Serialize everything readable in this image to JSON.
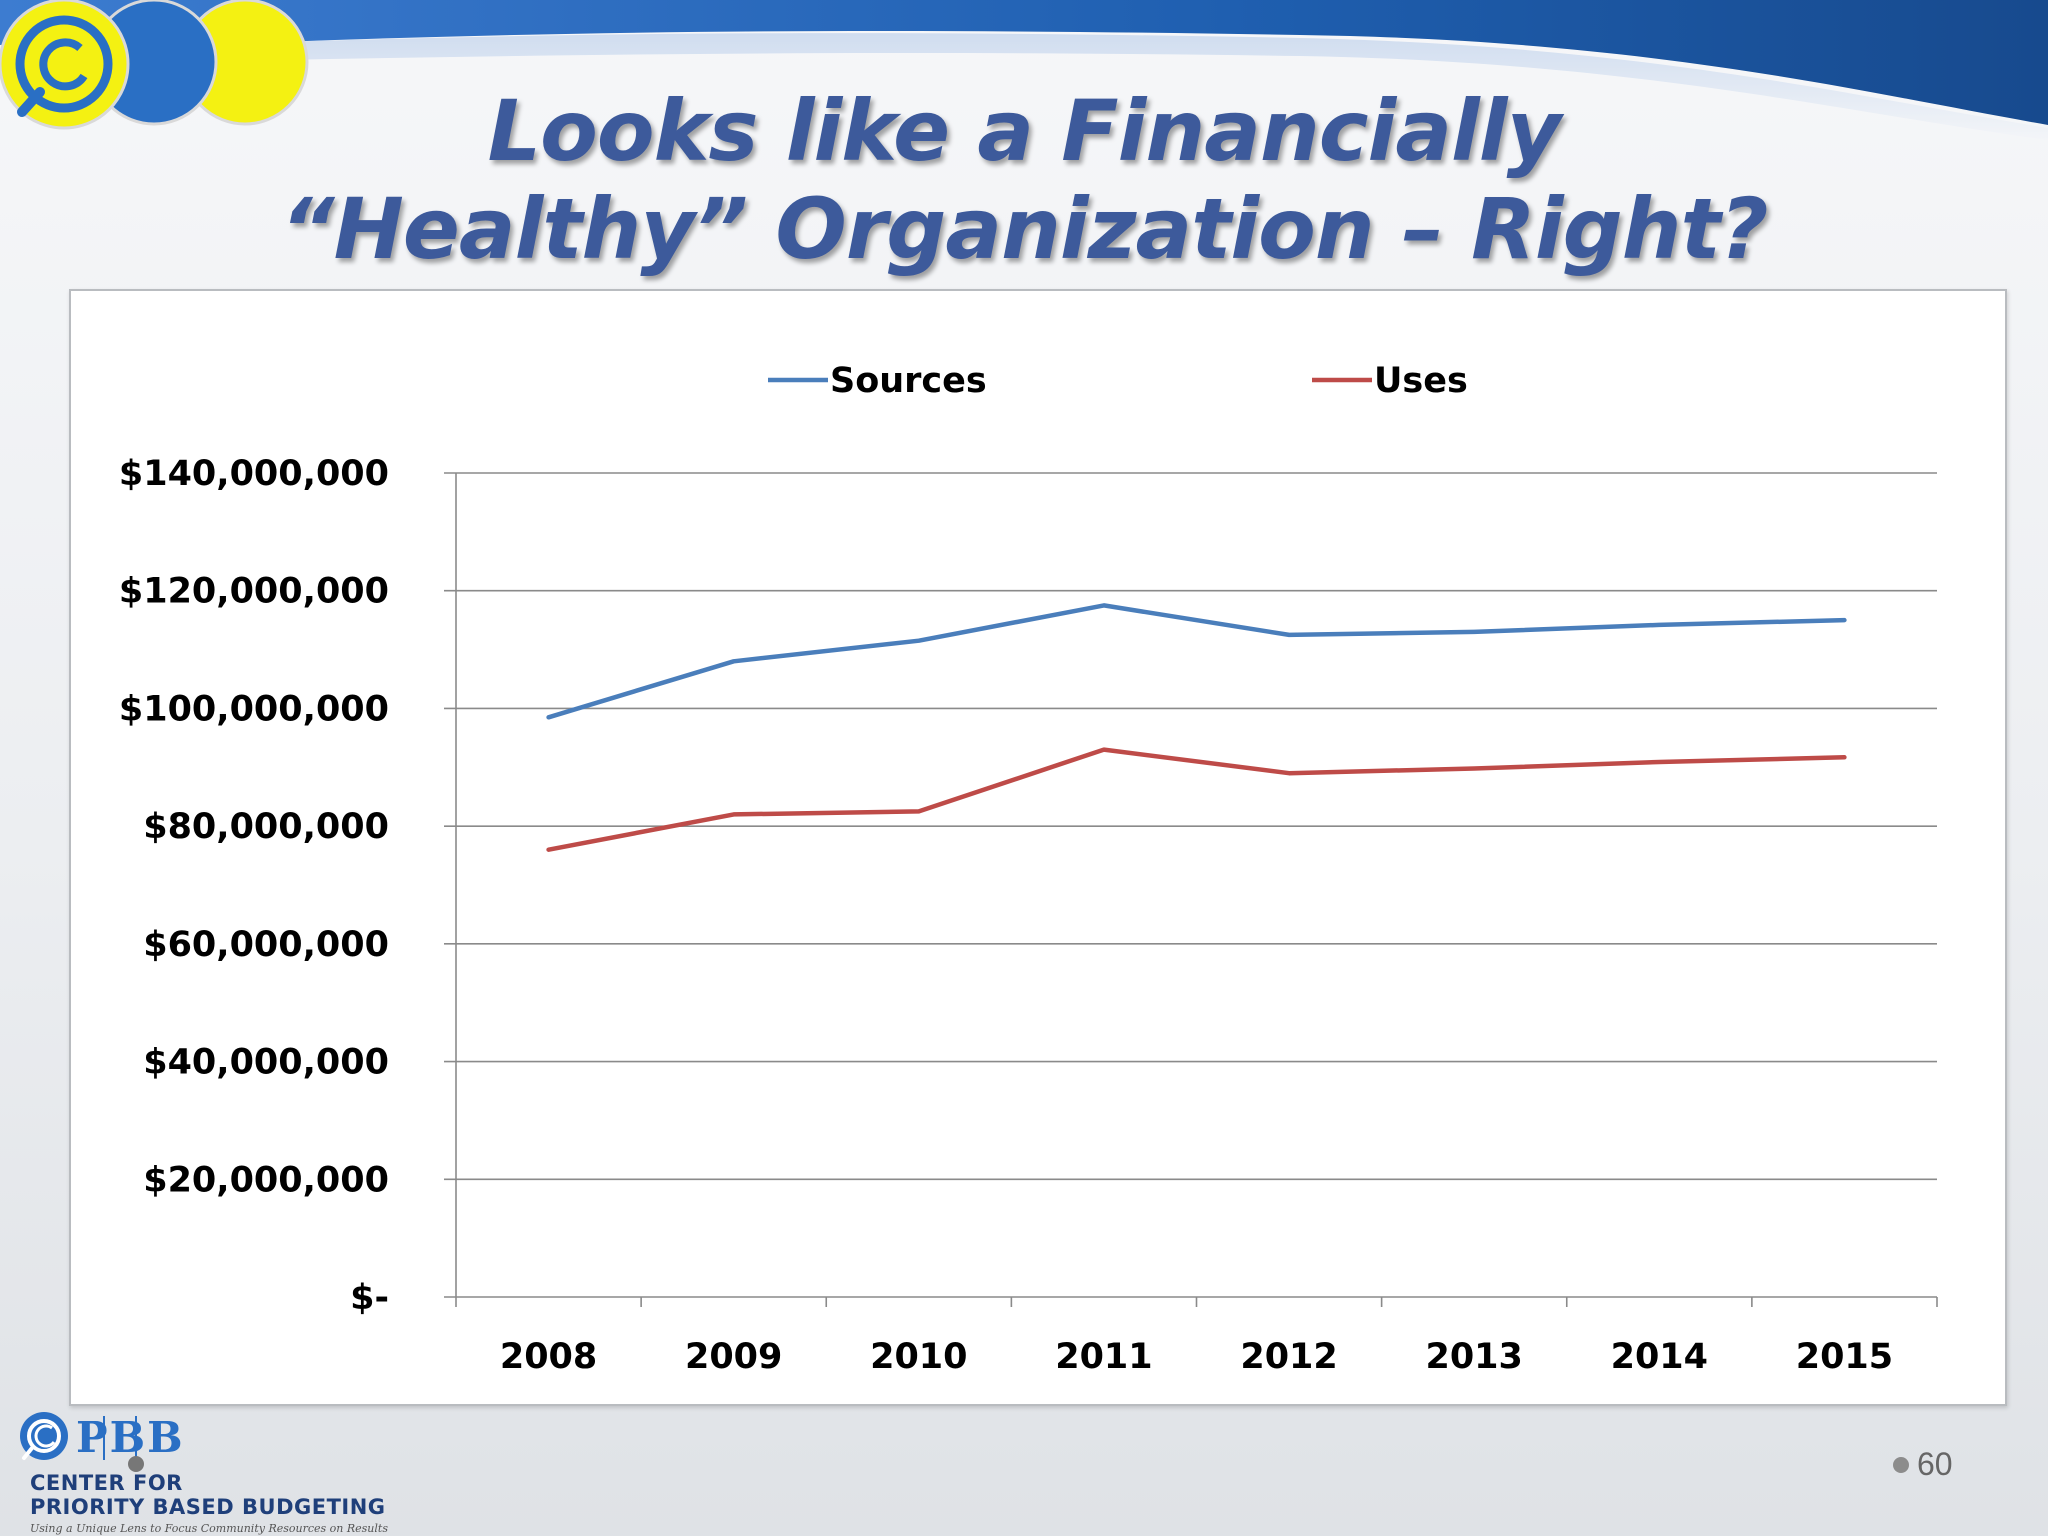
{
  "slide": {
    "title_line_1": "Looks like a Financially",
    "title_line_2": "“Healthy” Organization – Right?",
    "page_number": "60",
    "colors": {
      "title": "#3d5a9b",
      "swoosh_blue": "#1f5fb0",
      "logo_yellow": "#f4f112",
      "logo_blue": "#2a6fc4"
    }
  },
  "logo": {
    "letters": "PBB",
    "line_1": "CENTER FOR",
    "line_2": "PRIORITY BASED BUDGETING",
    "tagline": "Using a Unique Lens to Focus Community Resources on Results"
  },
  "chart_data": {
    "type": "line",
    "title": "",
    "xlabel": "",
    "ylabel": "",
    "categories": [
      "2008",
      "2009",
      "2010",
      "2011",
      "2012",
      "2013",
      "2014",
      "2015"
    ],
    "series": [
      {
        "name": "Sources",
        "color": "#4a7ebb",
        "values": [
          98500000,
          108000000,
          111500000,
          117500000,
          112500000,
          113000000,
          114200000,
          115000000
        ]
      },
      {
        "name": "Uses",
        "color": "#be4b48",
        "values": [
          76000000,
          82000000,
          82500000,
          93000000,
          89000000,
          89800000,
          90900000,
          91700000
        ]
      }
    ],
    "ylim": [
      0,
      140000000
    ],
    "yticks": [
      0,
      20000000,
      40000000,
      60000000,
      80000000,
      100000000,
      120000000,
      140000000
    ],
    "ytick_labels": [
      "$-",
      "$20,000,000",
      "$40,000,000",
      "$60,000,000",
      "$80,000,000",
      "$100,000,000",
      "$120,000,000",
      "$140,000,000"
    ],
    "grid": "horizontal",
    "legend_position": "top"
  }
}
